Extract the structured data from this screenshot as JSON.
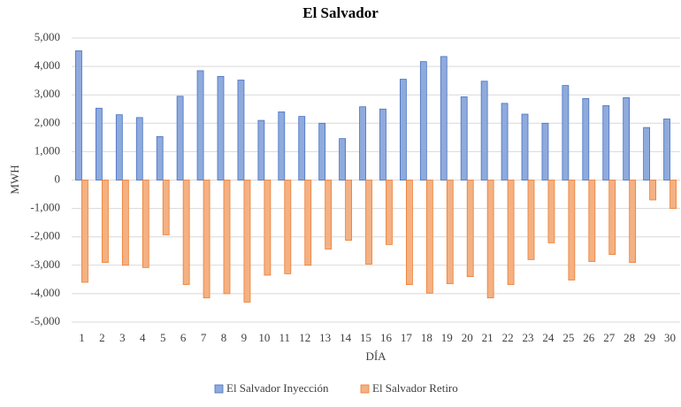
{
  "chart_data": {
    "type": "bar",
    "title": "El Salvador",
    "y_label": "MWH",
    "x_label": "DÍA",
    "categories": [
      "1",
      "2",
      "3",
      "4",
      "5",
      "6",
      "7",
      "8",
      "9",
      "10",
      "11",
      "12",
      "13",
      "14",
      "15",
      "16",
      "17",
      "18",
      "19",
      "20",
      "21",
      "22",
      "23",
      "24",
      "25",
      "26",
      "27",
      "28",
      "29",
      "30"
    ],
    "series": [
      {
        "name": "El Salvador Inyección",
        "color": "#8faadc",
        "edge": "#4472c4",
        "values": [
          4550,
          2530,
          2300,
          2200,
          1530,
          2950,
          3850,
          3650,
          3520,
          2100,
          2400,
          2240,
          2000,
          1460,
          2580,
          2500,
          3550,
          4170,
          4350,
          2930,
          3480,
          2700,
          2320,
          2000,
          3330,
          2870,
          2620,
          2900,
          1850,
          2150
        ]
      },
      {
        "name": "El Salvador Retiro",
        "color": "#f4b183",
        "edge": "#ed7d31",
        "values": [
          -3600,
          -2900,
          -3000,
          -3080,
          -1930,
          -3680,
          -4150,
          -4000,
          -4300,
          -3350,
          -3300,
          -3000,
          -2430,
          -2120,
          -2960,
          -2270,
          -3680,
          -3980,
          -3650,
          -3400,
          -4150,
          -3680,
          -2800,
          -2210,
          -3520,
          -2870,
          -2620,
          -2900,
          -700,
          -1000
        ]
      }
    ],
    "ylim": [
      -5000,
      5000
    ],
    "yticks": [
      {
        "value": -5000,
        "label": "-5,000"
      },
      {
        "value": -4000,
        "label": "-4,000"
      },
      {
        "value": -3000,
        "label": "-3,000"
      },
      {
        "value": -2000,
        "label": "-2,000"
      },
      {
        "value": -1000,
        "label": "-1,000"
      },
      0,
      {
        "value": 1000,
        "label": "1,000"
      },
      {
        "value": 2000,
        "label": "2,000"
      },
      {
        "value": 3000,
        "label": "3,000"
      },
      {
        "value": 4000,
        "label": "4,000"
      },
      {
        "value": 5000,
        "label": "5,000"
      }
    ],
    "grid": true,
    "legend": "bottom"
  }
}
